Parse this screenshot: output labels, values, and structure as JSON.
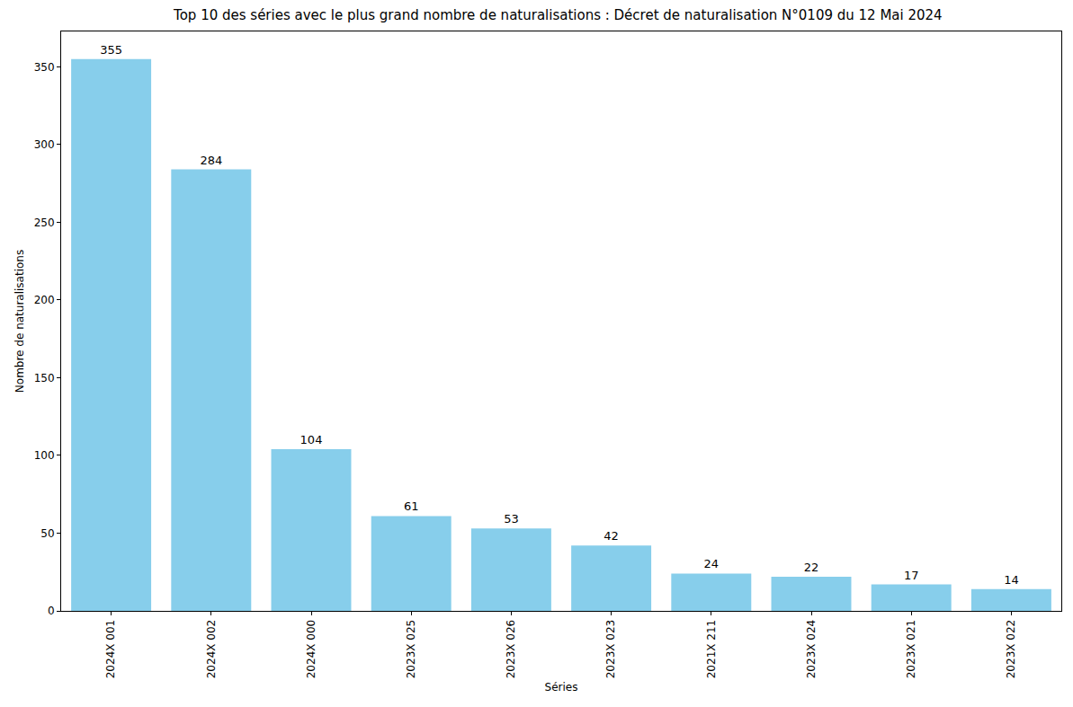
{
  "chart_data": {
    "type": "bar",
    "title": "Top 10 des séries avec le plus grand nombre de naturalisations : Décret de naturalisation N°0109 du 12 Mai 2024",
    "x_label": "Séries",
    "y_label": "Nombre de naturalisations",
    "categories": [
      "2024X 001",
      "2024X 002",
      "2024X 000",
      "2023X 025",
      "2023X 026",
      "2023X 023",
      "2021X 211",
      "2023X 024",
      "2023X 021",
      "2023X 022"
    ],
    "values": [
      355,
      284,
      104,
      61,
      53,
      42,
      24,
      22,
      17,
      14
    ],
    "color": "#87ceeb",
    "ylim": [
      0,
      372.75
    ],
    "yticks": [
      0,
      50,
      100,
      150,
      200,
      250,
      300,
      350
    ],
    "grid": false,
    "data_labels": true
  }
}
